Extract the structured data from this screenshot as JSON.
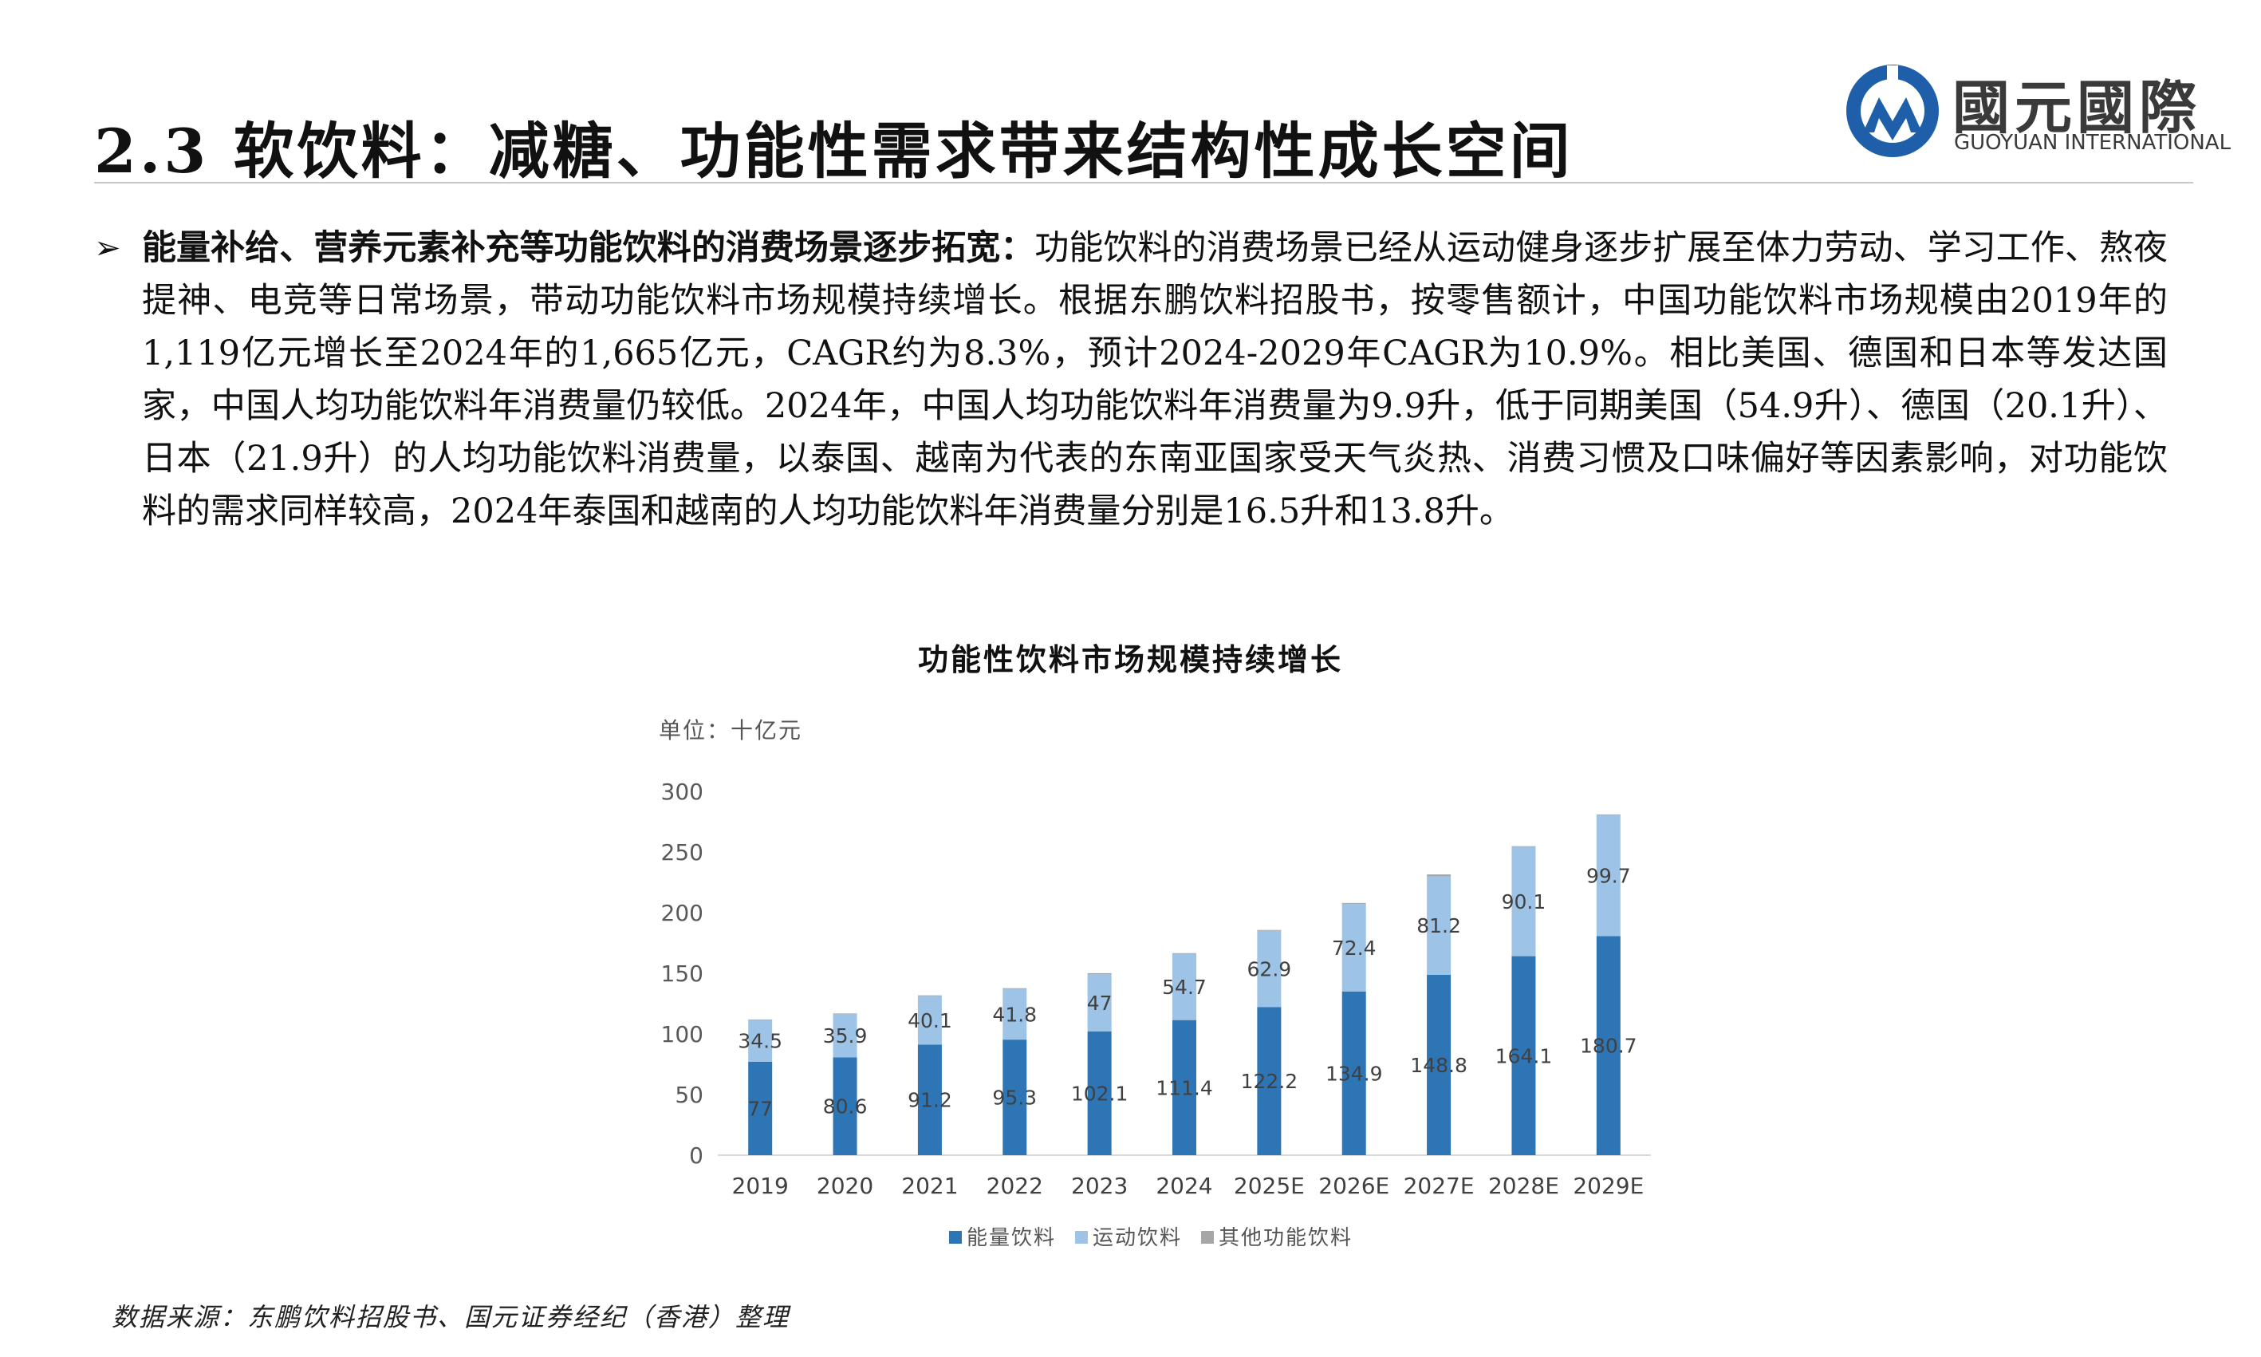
{
  "header": {
    "title": "2.3 软饮料：减糖、功能性需求带来结构性成长空间",
    "logo_cn": "國元國際",
    "logo_en": "GUOYUAN INTERNATIONAL",
    "logo_colors": {
      "blue": "#1f5faa",
      "gray": "#3a3a3a"
    }
  },
  "bullet": {
    "marker": "➢",
    "lead": "能量补给、营养元素补充等功能饮料的消费场景逐步拓宽：",
    "text": "功能饮料的消费场景已经从运动健身逐步扩展至体力劳动、学习工作、熬夜提神、电竞等日常场景，带动功能饮料市场规模持续增长。根据东鹏饮料招股书，按零售额计，中国功能饮料市场规模由2019年的1,119亿元增长至2024年的1,665亿元，CAGR约为8.3%，预计2024-2029年CAGR为10.9%。相比美国、德国和日本等发达国家，中国人均功能饮料年消费量仍较低。2024年，中国人均功能饮料年消费量为9.9升，低于同期美国（54.9升）、德国（20.1升）、日本（21.9升）的人均功能饮料消费量，以泰国、越南为代表的东南亚国家受天气炎热、消费习惯及口味偏好等因素影响，对功能饮料的需求同样较高，2024年泰国和越南的人均功能饮料年消费量分别是16.5升和13.8升。"
  },
  "chart_data": {
    "type": "bar",
    "stacked": true,
    "title": "功能性饮料市场规模持续增长",
    "unit_label": "单位：十亿元",
    "categories": [
      "2019",
      "2020",
      "2021",
      "2022",
      "2023",
      "2024",
      "2025E",
      "2026E",
      "2027E",
      "2028E",
      "2029E"
    ],
    "series": [
      {
        "name": "能量饮料",
        "color": "#2e75b6",
        "values": [
          77,
          80.6,
          91.2,
          95.3,
          102.1,
          111.4,
          122.2,
          134.9,
          148.8,
          164.1,
          180.7
        ]
      },
      {
        "name": "运动饮料",
        "color": "#9dc3e6",
        "values": [
          34.5,
          35.9,
          40.1,
          41.8,
          47,
          54.7,
          62.9,
          72.4,
          81.2,
          90.1,
          99.7
        ]
      },
      {
        "name": "其他功能饮料",
        "color": "#a6a6a6",
        "values": [
          0.4,
          0.4,
          0.5,
          0.6,
          1.0,
          0.5,
          0.6,
          0.7,
          1.5,
          0.6,
          0.6
        ]
      }
    ],
    "labels": {
      "能量饮料": [
        "77",
        "80.6",
        "91.2",
        "95.3",
        "102.1",
        "111.4",
        "122.2",
        "134.9",
        "148.8",
        "164.1",
        "180.7"
      ],
      "运动饮料": [
        "34.5",
        "35.9",
        "40.1",
        "41.8",
        "47",
        "54.7",
        "62.9",
        "72.4",
        "81.2",
        "90.1",
        "99.7"
      ]
    },
    "yticks": [
      "0",
      "50",
      "100",
      "150",
      "200",
      "250",
      "300"
    ],
    "ylim": [
      0,
      300
    ],
    "grid": false,
    "legend_position": "bottom"
  },
  "source": "数据来源：东鹏饮料招股书、国元证券经纪（香港）整理"
}
